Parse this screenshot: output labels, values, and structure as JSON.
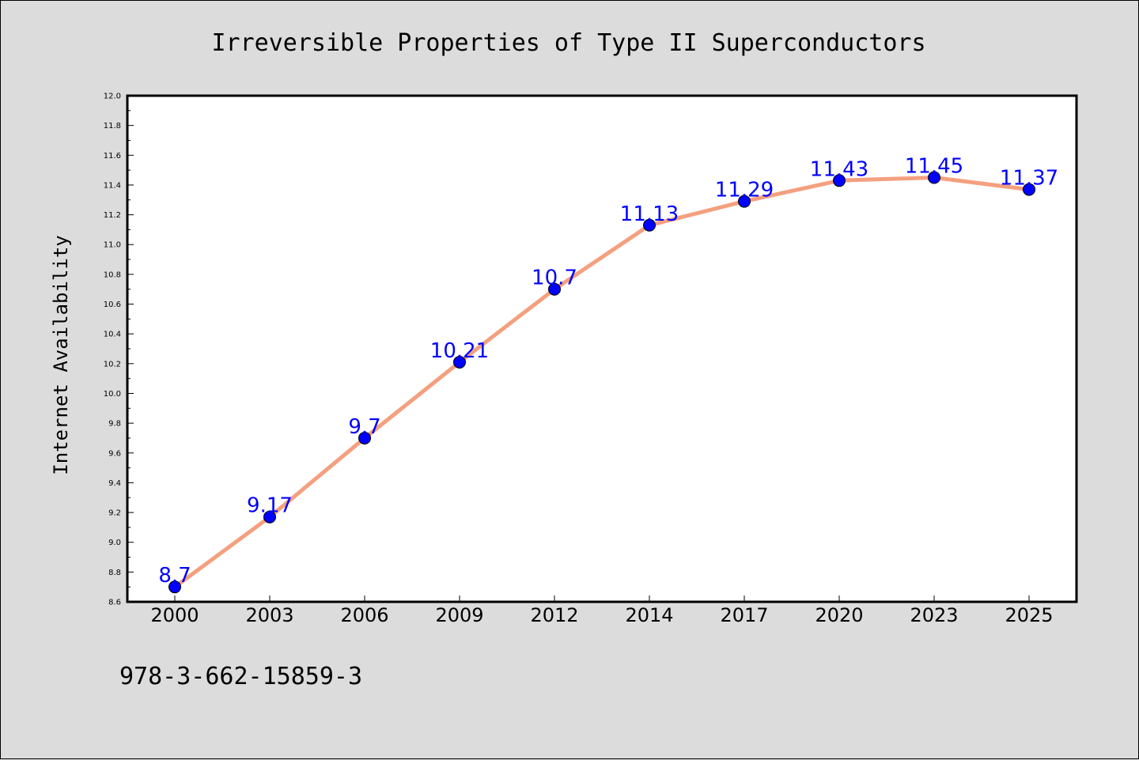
{
  "chart_data": {
    "type": "line",
    "title": "Irreversible Properties of Type II Superconductors",
    "xlabel": "",
    "ylabel": "Internet Availability",
    "categories": [
      "2000",
      "2003",
      "2006",
      "2009",
      "2012",
      "2014",
      "2017",
      "2020",
      "2023",
      "2025"
    ],
    "series": [
      {
        "values": [
          8.7,
          9.17,
          9.7,
          10.21,
          10.7,
          11.13,
          11.29,
          11.43,
          11.45,
          11.37
        ],
        "line_color": "#f4a07f",
        "marker_color": "#0000ff"
      }
    ],
    "data_labels": [
      "8.7",
      "9.17",
      "9.7",
      "10.21",
      "10.7",
      "11.13",
      "11.29",
      "11.43",
      "11.45",
      "11.37"
    ],
    "ylim": [
      8.6,
      12.0
    ],
    "yticks": [
      "8.6",
      "8.8",
      "9.0",
      "9.2",
      "9.4",
      "9.6",
      "9.8",
      "10.0",
      "10.2",
      "10.4",
      "10.6",
      "10.8",
      "11.0",
      "11.2",
      "11.4",
      "11.6",
      "11.8",
      "12.0"
    ],
    "grid": false,
    "legend": "none",
    "background_color": "#dcdcdc",
    "plot_background_color": "#ffffff"
  },
  "footer": {
    "isbn": "978-3-662-15859-3"
  }
}
